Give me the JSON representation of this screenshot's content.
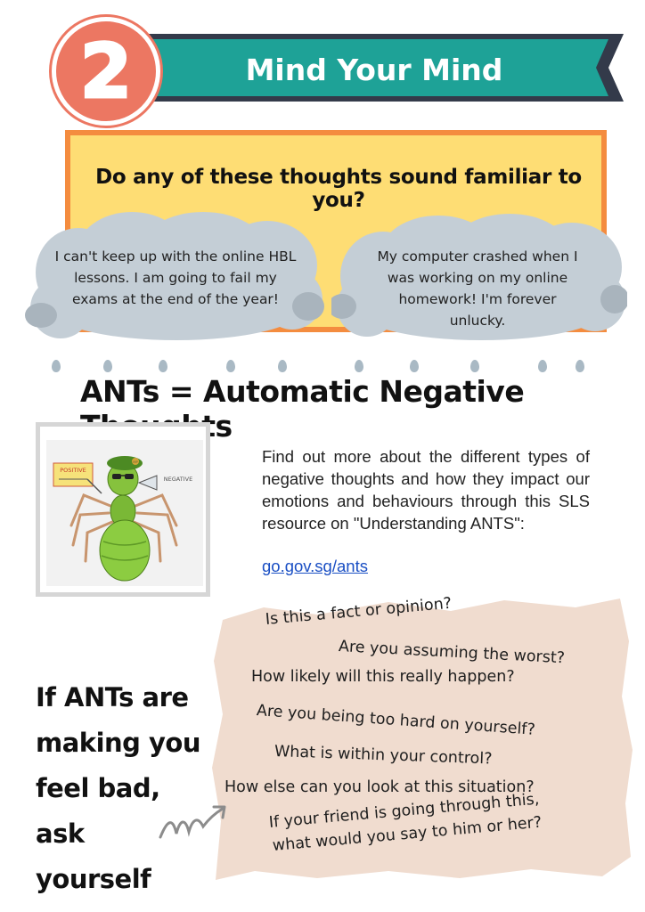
{
  "header": {
    "number": "2",
    "title": "Mind Your Mind",
    "colors": {
      "banner": "#1ea297",
      "banner_edge": "#333a4a",
      "badge": "#ec7762"
    }
  },
  "familiar": {
    "question": "Do any of these thoughts sound familiar to you?",
    "thoughts": [
      "I can't keep up with the online HBL lessons. I am going to fail my exams at the end of the year!",
      "My computer crashed when I was working on my online homework! I'm forever unlucky."
    ],
    "colors": {
      "box": "#fedd74",
      "border": "#f48c3f",
      "cloud": "#c4ced6"
    }
  },
  "ants": {
    "heading": "ANTs = Automatic Negative Thoughts",
    "illustration": {
      "sign_left": "POSITIVE",
      "sign_right": "NEGATIVE",
      "hat_badge": "MP"
    },
    "info": "Find out more about the different types of negative thoughts and how they impact our emotions and behaviours through this SLS resource on \"Understanding ANTS\":",
    "link": "go.gov.sg/ants"
  },
  "ask": {
    "prompt_lines": [
      "If ANTs are",
      "making you",
      "feel bad, ask",
      "yourself"
    ],
    "questions": [
      "Is this a fact or opinion?",
      "Are you assuming the worst?",
      "How likely will this really happen?",
      "Are you being too hard on yourself?",
      "What is within your control?",
      "How else can you look at this situation?",
      "If your friend is going through this,",
      "what would you say to him or her?"
    ],
    "colors": {
      "paper": "#f0dccf"
    }
  }
}
